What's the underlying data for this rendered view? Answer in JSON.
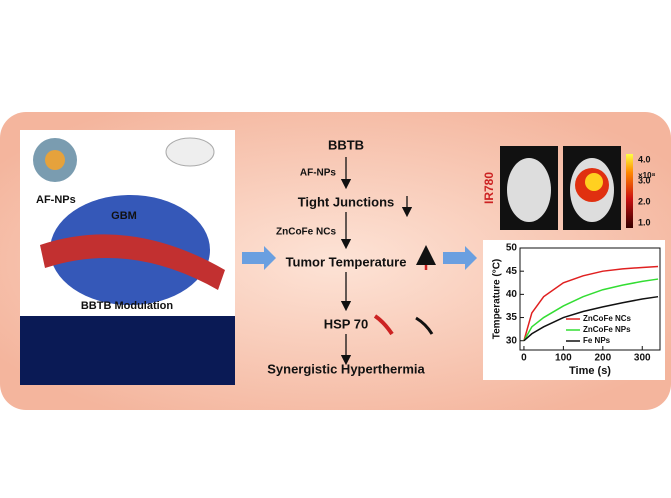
{
  "left_panel": {
    "agent": "AF-NPs",
    "organ": "GBM",
    "caption": "BBTB Modulation"
  },
  "flow": {
    "steps": [
      "BBTB",
      "Tight Junctions",
      "Tumor Temperature",
      "HSP 70",
      "Synergistic Hyperthermia"
    ],
    "agents": [
      "AF-NPs",
      "ZnCoFe NCs"
    ]
  },
  "imaging": {
    "label": "IR780",
    "colorbar_ticks": [
      "4.0",
      "3.0",
      "2.0",
      "1.0"
    ],
    "colorbar_unit": "×10⁸"
  },
  "chart_data": {
    "type": "line",
    "xlabel": "Time (s)",
    "ylabel": "Temperature (°C)",
    "x": [
      0,
      20,
      50,
      100,
      150,
      200,
      250,
      300,
      340
    ],
    "series": [
      {
        "name": "ZnCoFe NCs",
        "color": "#e02020",
        "values": [
          30,
          36,
          39.5,
          42.5,
          44,
          45,
          45.5,
          45.8,
          46
        ]
      },
      {
        "name": "ZnCoFe NPs",
        "color": "#33dd33",
        "values": [
          30,
          33,
          35,
          37.5,
          39.5,
          41,
          42,
          42.8,
          43.3
        ]
      },
      {
        "name": "Fe NPs",
        "color": "#111111",
        "values": [
          30,
          31.5,
          33,
          35,
          36.3,
          37.3,
          38.2,
          39,
          39.5
        ]
      }
    ],
    "xlim": [
      -10,
      345
    ],
    "ylim": [
      28,
      50
    ],
    "xticks": [
      0,
      100,
      200,
      300
    ],
    "yticks": [
      30,
      35,
      40,
      45,
      50
    ]
  }
}
